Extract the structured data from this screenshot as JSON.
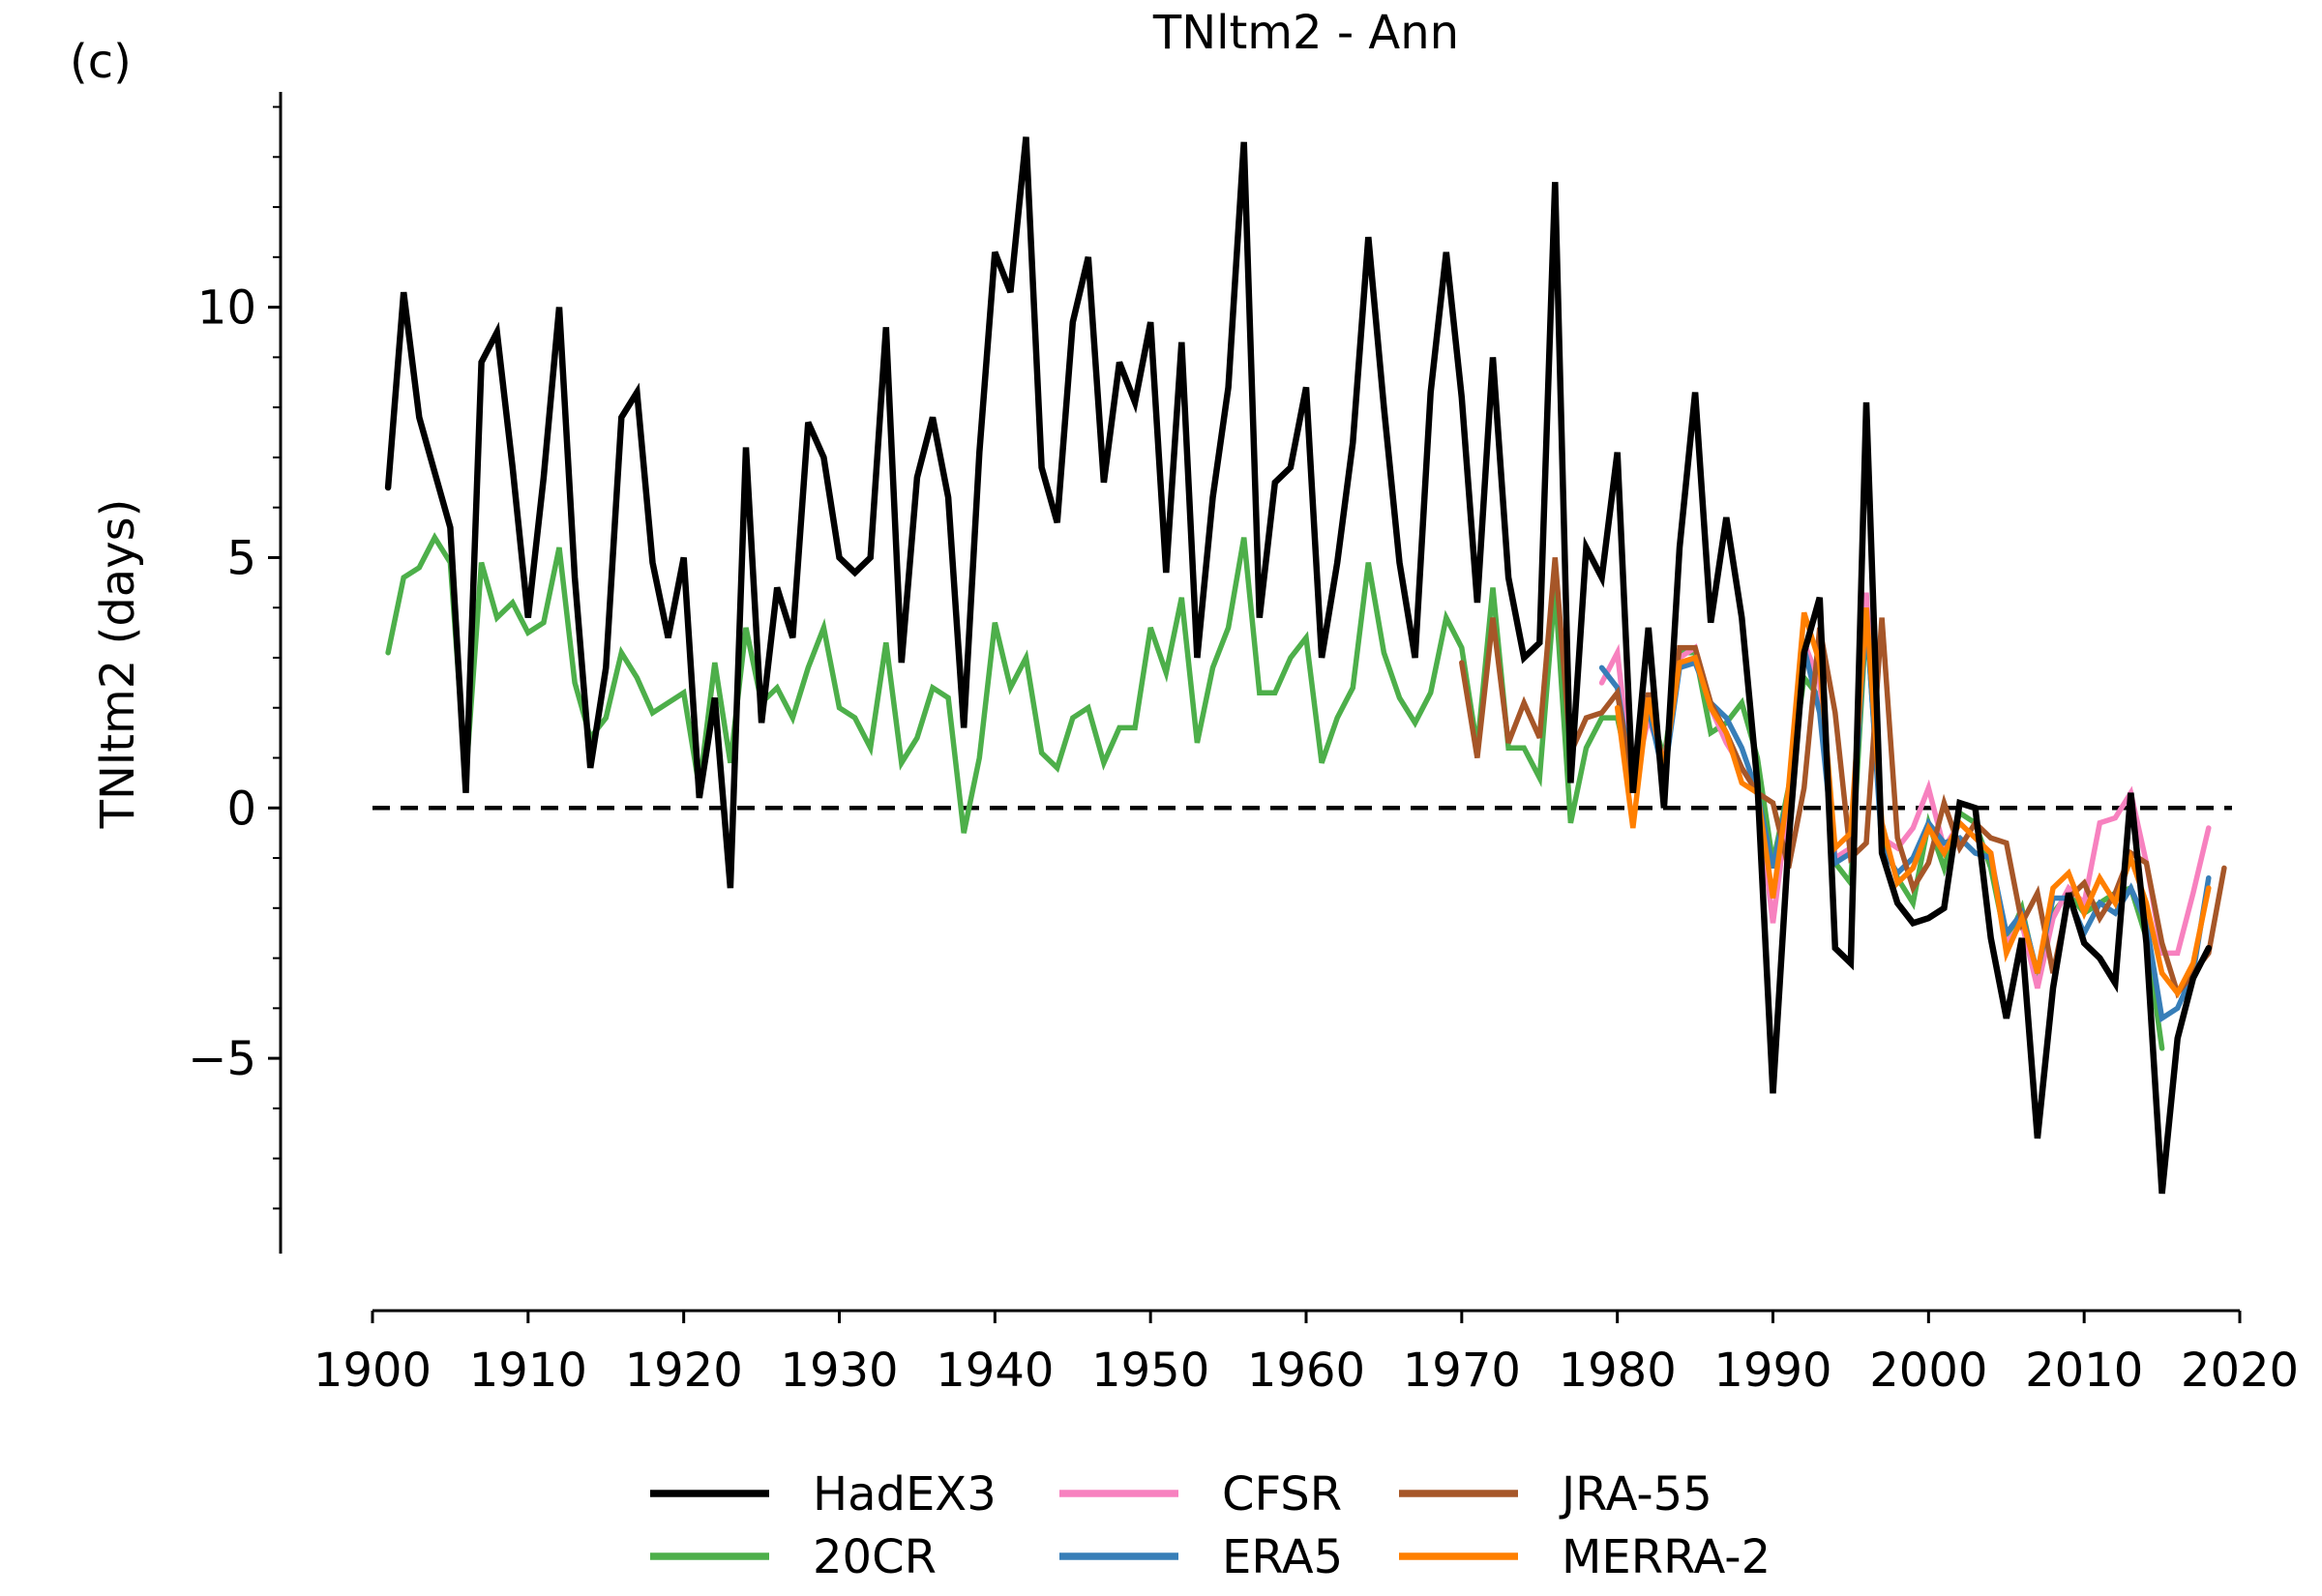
{
  "chart_data": {
    "type": "line",
    "panel_label": "(c)",
    "title": "TNltm2 - Ann",
    "xlabel": "",
    "ylabel": "TNltm2 (days)",
    "xlim": [
      1900,
      2020
    ],
    "ylim": [
      -8.9,
      14.3
    ],
    "xticks": [
      1900,
      1910,
      1920,
      1930,
      1940,
      1950,
      1960,
      1970,
      1980,
      1990,
      2000,
      2010,
      2020
    ],
    "xtick_labels": [
      "1900",
      "1910",
      "1920",
      "1930",
      "1940",
      "1950",
      "1960",
      "1970",
      "1980",
      "1990",
      "2000",
      "2010",
      "2020"
    ],
    "yticks": [
      10,
      5,
      0,
      -5
    ],
    "ytick_labels": [
      "10",
      "5",
      "0",
      "−5"
    ],
    "yminor_ticks": [
      -8,
      -7,
      -6,
      -4,
      -3,
      -2,
      -1,
      1,
      2,
      3,
      4,
      6,
      7,
      8,
      9,
      11,
      12,
      13,
      14
    ],
    "reference_line": 0,
    "grid": false,
    "legend_position": "bottom-center",
    "series": [
      {
        "name": "HadEX3",
        "color": "#000000",
        "x_start": 1901,
        "values": [
          6.4,
          10.3,
          7.8,
          6.7,
          5.6,
          0.3,
          8.9,
          9.5,
          6.8,
          3.8,
          6.6,
          10.0,
          4.6,
          0.8,
          2.8,
          7.8,
          8.3,
          4.9,
          3.4,
          5.0,
          0.2,
          2.2,
          -1.6,
          7.2,
          1.7,
          4.4,
          3.4,
          7.7,
          7.0,
          5.0,
          4.7,
          5.0,
          9.6,
          2.9,
          6.6,
          7.8,
          6.2,
          1.6,
          7.1,
          11.1,
          10.3,
          13.4,
          6.8,
          5.7,
          9.7,
          11.0,
          6.5,
          8.9,
          8.1,
          9.7,
          4.7,
          9.3,
          3.0,
          6.2,
          8.4,
          13.3,
          3.8,
          6.5,
          6.8,
          8.4,
          3.0,
          4.9,
          7.3,
          11.4,
          8.0,
          4.9,
          3.0,
          8.3,
          11.1,
          8.2,
          4.1,
          9.0,
          4.6,
          3.0,
          3.3,
          12.5,
          0.5,
          5.2,
          4.6,
          7.1,
          0.3,
          3.6,
          0.0,
          5.2,
          8.3,
          3.7,
          5.8,
          3.8,
          0.5,
          -5.7,
          -0.7,
          3.1,
          4.2,
          -2.8,
          -3.1,
          8.1,
          -0.9,
          -1.9,
          -2.3,
          -2.2,
          -2.0,
          0.1,
          0.0,
          -2.6,
          -4.2,
          -2.6,
          -6.6,
          -3.6,
          -1.7,
          -2.7,
          -3.0,
          -3.5,
          0.3,
          -2.7,
          -7.7,
          -4.6,
          -3.4,
          -2.8
        ]
      },
      {
        "name": "20CR",
        "color": "#4daf4a",
        "x_start": 1901,
        "values": [
          3.1,
          4.6,
          4.8,
          5.4,
          4.9,
          0.6,
          4.9,
          3.8,
          4.1,
          3.5,
          3.7,
          5.2,
          2.5,
          1.4,
          1.8,
          3.1,
          2.6,
          1.9,
          2.1,
          2.3,
          0.4,
          2.9,
          0.9,
          3.6,
          2.1,
          2.4,
          1.8,
          2.8,
          3.6,
          2.0,
          1.8,
          1.2,
          3.3,
          0.9,
          1.4,
          2.4,
          2.2,
          -0.5,
          1.0,
          3.7,
          2.4,
          3.0,
          1.1,
          0.8,
          1.8,
          2.0,
          0.9,
          1.6,
          1.6,
          3.6,
          2.7,
          4.2,
          1.3,
          2.8,
          3.6,
          5.4,
          2.3,
          2.3,
          3.0,
          3.4,
          0.9,
          1.8,
          2.4,
          4.9,
          3.1,
          2.2,
          1.7,
          2.3,
          3.8,
          3.2,
          1.2,
          4.4,
          1.2,
          1.2,
          0.6,
          4.4,
          -0.3,
          1.2,
          1.8,
          1.8,
          0.4,
          2.1,
          1.0,
          3.1,
          3.1,
          1.5,
          1.7,
          2.1,
          1.0,
          -1.1,
          0.4,
          2.6,
          2.2,
          -1.1,
          -1.5,
          3.8,
          -0.6,
          -1.4,
          -1.9,
          -0.3,
          -1.2,
          -0.1,
          -0.3,
          -1.2,
          -2.7,
          -2.0,
          -3.4,
          -2.1,
          -1.7,
          -2.1,
          -1.9,
          -1.7,
          -1.6,
          -2.6,
          -4.8
        ]
      },
      {
        "name": "CFSR",
        "color": "#f781bf",
        "x_start": 1979,
        "values": [
          2.5,
          3.1,
          0.4,
          1.8,
          0.9,
          3.0,
          3.2,
          2.0,
          1.3,
          0.8,
          0.3,
          -2.3,
          0.1,
          3.3,
          2.5,
          -1.0,
          -0.8,
          4.3,
          -0.6,
          -0.8,
          -0.4,
          0.4,
          -0.8,
          -0.3,
          -0.6,
          -0.9,
          -2.7,
          -2.3,
          -3.6,
          -2.2,
          -1.6,
          -1.9,
          -0.3,
          -0.2,
          0.3,
          -1.1,
          -2.9,
          -2.9,
          -1.7,
          -0.4
        ]
      },
      {
        "name": "ERA5",
        "color": "#377eb8",
        "x_start": 1979,
        "values": [
          2.8,
          2.4,
          0.5,
          2.0,
          0.6,
          2.8,
          2.9,
          2.1,
          1.8,
          1.2,
          0.3,
          -1.2,
          0.3,
          3.2,
          1.9,
          -1.1,
          -0.9,
          3.9,
          -0.8,
          -1.3,
          -1.0,
          -0.3,
          -0.7,
          -0.6,
          -0.9,
          -1.0,
          -2.5,
          -2.1,
          -3.3,
          -1.8,
          -1.8,
          -2.5,
          -1.9,
          -2.1,
          -1.6,
          -2.3,
          -4.2,
          -4.0,
          -3.3,
          -1.4
        ]
      },
      {
        "name": "JRA-55",
        "color": "#a65628",
        "x_start": 1970,
        "values": [
          2.9,
          1.0,
          3.8,
          1.3,
          2.1,
          1.4,
          5.0,
          1.1,
          1.8,
          1.9,
          2.3,
          0.4,
          2.3,
          0.8,
          3.2,
          3.2,
          2.1,
          1.5,
          0.8,
          0.3,
          0.1,
          -1.2,
          0.4,
          3.6,
          1.9,
          -1.0,
          -0.7,
          3.8,
          -0.6,
          -1.6,
          -1.1,
          0.1,
          -0.8,
          -0.3,
          -0.6,
          -0.7,
          -2.3,
          -1.7,
          -3.3,
          -1.8,
          -1.5,
          -2.2,
          -1.7,
          -0.9,
          -1.1,
          -2.7,
          -3.7,
          -3.3,
          -2.9,
          -1.2
        ]
      },
      {
        "name": "MERRA-2",
        "color": "#ff7f00",
        "x_start": 1980,
        "values": [
          2.0,
          -0.4,
          2.2,
          0.8,
          2.9,
          3.0,
          2.0,
          1.5,
          0.5,
          0.3,
          -1.8,
          0.4,
          3.9,
          2.9,
          -0.8,
          -0.5,
          4.0,
          -0.3,
          -1.5,
          -1.2,
          -0.4,
          -0.9,
          -0.3,
          -0.6,
          -0.9,
          -2.9,
          -2.2,
          -3.3,
          -1.6,
          -1.3,
          -2.1,
          -1.4,
          -1.9,
          -1.0,
          -1.9,
          -3.3,
          -3.7,
          -3.1,
          -1.6
        ]
      }
    ]
  }
}
